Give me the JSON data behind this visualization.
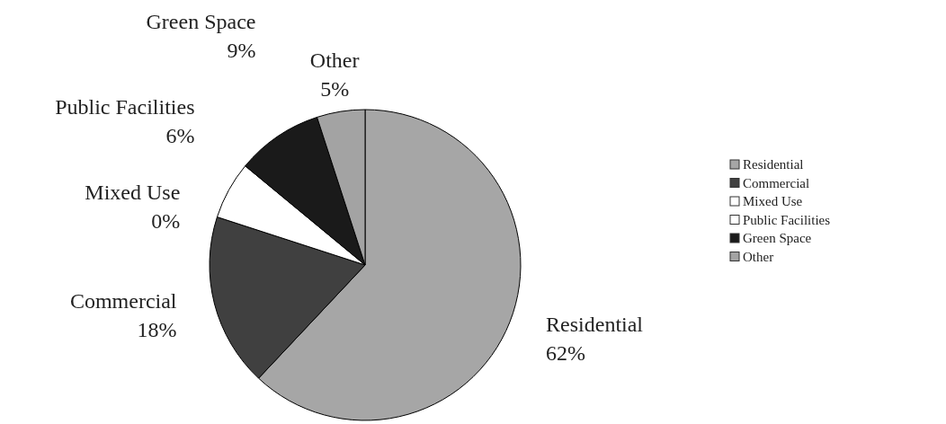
{
  "chart_data": {
    "type": "pie",
    "categories": [
      "Residential",
      "Commercial",
      "Mixed Use",
      "Public Facilities",
      "Green Space",
      "Other"
    ],
    "values": [
      62,
      18,
      0,
      6,
      9,
      5
    ],
    "value_labels": [
      "62%",
      "18%",
      "0%",
      "6%",
      "9%",
      "5%"
    ],
    "colors": [
      "#a6a6a6",
      "#404040",
      "#ffffff",
      "#ffffff",
      "#1a1a1a",
      "#a3a3a3"
    ],
    "legend": "right"
  }
}
